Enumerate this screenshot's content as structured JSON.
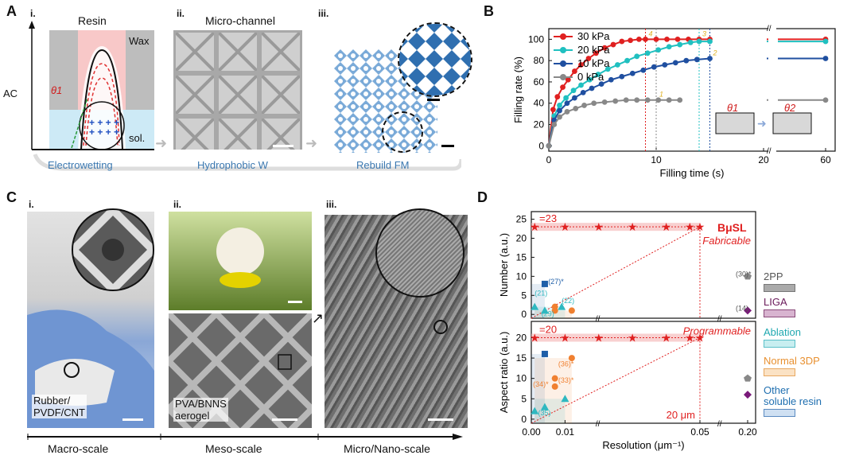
{
  "panelA": {
    "letter": "A",
    "sub_i": "i.",
    "sub_ii": "ii.",
    "sub_iii": "iii.",
    "resin": "Resin",
    "wax": "Wax",
    "ac": "AC",
    "theta1": "θ1",
    "sol": "sol.",
    "pluses": "+ + + +\n+ + + +",
    "microchannel": "Micro-channel",
    "cap_i": "Electrowetting",
    "cap_ii": "Hydrophobic W",
    "cap_iii": "Rebuild FM"
  },
  "panelB": {
    "letter": "B",
    "inset_theta1": "θ1",
    "inset_theta2": "θ2"
  },
  "panelC": {
    "letter": "C",
    "sub_i": "i.",
    "sub_ii": "ii.",
    "sub_iii": "iii.",
    "label_i": "Rubber/\nPVDF/CNT",
    "label_ii": "PVA/BNNS\naerogel",
    "scale_macro": "Macro-scale",
    "scale_meso": "Meso-scale",
    "scale_micro": "Micro/Nano-scale"
  },
  "panelD": {
    "letter": "D",
    "top_eq": "=23",
    "bottom_eq": "=20",
    "bmusl": "BμSL",
    "fabricable": "Fabricable",
    "programmable": "Programmable",
    "micron": "20 μm",
    "legend": [
      "2PP",
      "LIGA",
      "Ablation",
      "Normal 3DP",
      "Other\nsoluble resin"
    ],
    "legend_colors": [
      "#9a9a9a",
      "#7a2a6a",
      "#2fb8c0",
      "#f0a040",
      "#1f6fb0"
    ]
  },
  "chart_data": [
    {
      "type": "line",
      "title": "",
      "xlabel": "Filling time (s)",
      "ylabel": "Filling rate (%)",
      "xticks": [
        "0",
        "10",
        "20",
        "60"
      ],
      "yticks": [
        "0",
        "20",
        "40",
        "60",
        "80",
        "100"
      ],
      "ylim": [
        -5,
        110
      ],
      "annotations": [
        "1",
        "2",
        "3",
        "4"
      ],
      "series": [
        {
          "name": "30 kPa",
          "color": "#e02020",
          "x": [
            0,
            0.4,
            0.8,
            1.3,
            1.8,
            2.4,
            3,
            3.7,
            4.4,
            5.2,
            6,
            6.8,
            7.6,
            8.4,
            9,
            10,
            11,
            12,
            13,
            14,
            15,
            60
          ],
          "y": [
            0,
            34,
            46,
            55,
            62,
            70,
            76,
            82,
            87,
            92,
            95,
            98,
            99,
            100,
            100,
            100,
            100,
            100,
            100,
            100,
            100,
            100
          ]
        },
        {
          "name": "20 kPa",
          "color": "#20c0c0",
          "x": [
            0,
            0.5,
            1,
            1.6,
            2.3,
            3,
            3.8,
            4.6,
            5.5,
            6.4,
            7.3,
            8.2,
            9.2,
            10.2,
            11.2,
            12.2,
            13.2,
            14,
            15,
            60
          ],
          "y": [
            0,
            28,
            38,
            45,
            52,
            57,
            62,
            67,
            72,
            76,
            80,
            84,
            87,
            90,
            93,
            95,
            97,
            98,
            98,
            98
          ]
        },
        {
          "name": "10 kPa",
          "color": "#1f4fa0",
          "x": [
            0,
            0.5,
            1,
            1.7,
            2.4,
            3.2,
            4,
            4.9,
            5.8,
            6.8,
            7.8,
            8.8,
            9.8,
            10.8,
            11.8,
            12.8,
            13.8,
            15,
            60
          ],
          "y": [
            0,
            24,
            33,
            40,
            45,
            50,
            54,
            58,
            62,
            65,
            68,
            71,
            74,
            76,
            78,
            80,
            81,
            82,
            82
          ]
        },
        {
          "name": "0 kPa",
          "color": "#888888",
          "x": [
            0,
            0.5,
            1,
            1.7,
            2.5,
            3.3,
            4.2,
            5.2,
            6.2,
            7.2,
            8.2,
            9.2,
            10.2,
            11.2,
            12.2,
            60
          ],
          "y": [
            0,
            20,
            27,
            32,
            35,
            38,
            40,
            41,
            42,
            43,
            43,
            43,
            43,
            43,
            43,
            43
          ]
        }
      ]
    },
    {
      "type": "scatter",
      "title": "Number",
      "xlabel": "",
      "ylabel": "Number (a.u.)",
      "yticks": [
        "0",
        "5",
        "10",
        "15",
        "20",
        "25"
      ],
      "ylim": [
        -1,
        27
      ],
      "labels": [
        "(21)",
        "(27)*",
        "(22)",
        "(29)",
        "(30)*",
        "(14)"
      ],
      "points": [
        {
          "x": 0.001,
          "y": 23,
          "group": "BμSL"
        },
        {
          "x": 0.01,
          "y": 23,
          "group": "BμSL"
        },
        {
          "x": 0.02,
          "y": 23,
          "group": "BμSL"
        },
        {
          "x": 0.03,
          "y": 23,
          "group": "BμSL"
        },
        {
          "x": 0.04,
          "y": 23,
          "group": "BμSL"
        },
        {
          "x": 0.047,
          "y": 23,
          "group": "BμSL"
        },
        {
          "x": 0.05,
          "y": 23,
          "group": "BμSL"
        },
        {
          "x": 0.004,
          "y": 8,
          "group": "Other soluble resin"
        },
        {
          "x": 0.001,
          "y": 2,
          "group": "Ablation"
        },
        {
          "x": 0.004,
          "y": 1,
          "group": "Ablation"
        },
        {
          "x": 0.009,
          "y": 2,
          "group": "Ablation"
        },
        {
          "x": 0.007,
          "y": 1,
          "group": "Normal 3DP"
        },
        {
          "x": 0.007,
          "y": 2,
          "group": "Normal 3DP"
        },
        {
          "x": 0.012,
          "y": 1,
          "group": "Normal 3DP"
        },
        {
          "x": 0.2,
          "y": 10,
          "group": "2PP"
        },
        {
          "x": 0.2,
          "y": 1,
          "group": "LIGA"
        }
      ]
    },
    {
      "type": "scatter",
      "title": "Aspect ratio",
      "xlabel": "Resolution (μm⁻¹)",
      "ylabel": "Aspect ratio (a.u.)",
      "xticks": [
        "0.00",
        "0.01",
        "0.05",
        "0.20"
      ],
      "yticks": [
        "0",
        "5",
        "10",
        "15",
        "20"
      ],
      "ylim": [
        -1,
        24
      ],
      "labels": [
        "(34)*",
        "(35)",
        "(36)*",
        "(33)*"
      ],
      "points": [
        {
          "x": 0.001,
          "y": 20,
          "group": "BμSL"
        },
        {
          "x": 0.01,
          "y": 20,
          "group": "BμSL"
        },
        {
          "x": 0.02,
          "y": 20,
          "group": "BμSL"
        },
        {
          "x": 0.03,
          "y": 20,
          "group": "BμSL"
        },
        {
          "x": 0.04,
          "y": 20,
          "group": "BμSL"
        },
        {
          "x": 0.047,
          "y": 20,
          "group": "BμSL"
        },
        {
          "x": 0.05,
          "y": 20,
          "group": "BμSL"
        },
        {
          "x": 0.004,
          "y": 16,
          "group": "Other soluble resin"
        },
        {
          "x": 0.001,
          "y": 2,
          "group": "Ablation"
        },
        {
          "x": 0.004,
          "y": 3,
          "group": "Ablation"
        },
        {
          "x": 0.01,
          "y": 5,
          "group": "Ablation"
        },
        {
          "x": 0.007,
          "y": 10,
          "group": "Normal 3DP"
        },
        {
          "x": 0.007,
          "y": 8,
          "group": "Normal 3DP"
        },
        {
          "x": 0.012,
          "y": 15,
          "group": "Normal 3DP"
        },
        {
          "x": 0.2,
          "y": 10,
          "group": "2PP"
        },
        {
          "x": 0.2,
          "y": 6,
          "group": "LIGA"
        }
      ]
    }
  ]
}
